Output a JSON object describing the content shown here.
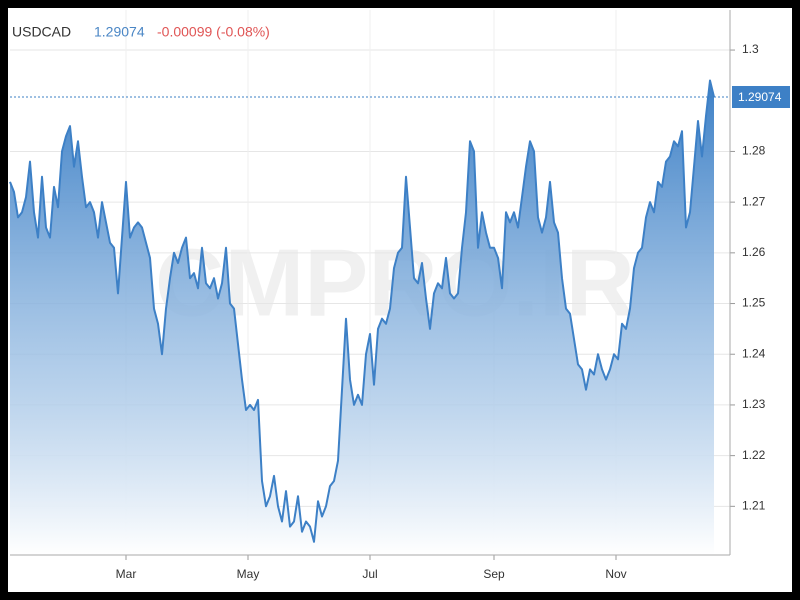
{
  "chart_data": {
    "type": "area",
    "symbol": "USDCAD",
    "price": 1.29074,
    "change": "-0.00099 (-0.08%)",
    "watermark": "CMPRO.IR",
    "color": "#3d80c6",
    "grid": true,
    "ylim": [
      1.2004,
      1.3079
    ],
    "yticks": [
      1.21,
      1.22,
      1.23,
      1.24,
      1.25,
      1.26,
      1.27,
      1.28,
      1.3
    ],
    "xlim": [
      2,
      362
    ],
    "xticks": [
      {
        "value": 60,
        "label": "Mar"
      },
      {
        "value": 121,
        "label": "May"
      },
      {
        "value": 182,
        "label": "Jul"
      },
      {
        "value": 244,
        "label": "Sep"
      },
      {
        "value": 305,
        "label": "Nov"
      }
    ],
    "x": [
      2,
      4,
      6,
      8,
      10,
      12,
      14,
      16,
      18,
      20,
      22,
      24,
      26,
      28,
      30,
      32,
      34,
      36,
      38,
      40,
      42,
      44,
      46,
      48,
      50,
      52,
      54,
      56,
      58,
      60,
      62,
      64,
      66,
      68,
      70,
      72,
      74,
      76,
      78,
      80,
      82,
      84,
      86,
      88,
      90,
      92,
      94,
      96,
      98,
      100,
      102,
      104,
      106,
      108,
      110,
      112,
      114,
      116,
      118,
      120,
      122,
      124,
      126,
      128,
      130,
      132,
      134,
      136,
      138,
      140,
      142,
      144,
      146,
      148,
      150,
      152,
      154,
      156,
      158,
      160,
      162,
      164,
      166,
      168,
      170,
      172,
      174,
      176,
      178,
      180,
      182,
      184,
      186,
      188,
      190,
      192,
      194,
      196,
      198,
      200,
      202,
      204,
      206,
      208,
      210,
      212,
      214,
      216,
      218,
      220,
      222,
      224,
      226,
      228,
      230,
      232,
      234,
      236,
      238,
      240,
      242,
      244,
      246,
      248,
      250,
      252,
      254,
      256,
      258,
      260,
      262,
      264,
      266,
      268,
      270,
      272,
      274,
      276,
      278,
      280,
      282,
      284,
      286,
      288,
      290,
      292,
      294,
      296,
      298,
      300,
      302,
      304,
      306,
      308,
      310,
      312,
      314,
      316,
      318,
      320,
      322,
      324,
      326,
      328,
      330,
      332,
      334,
      336,
      338,
      340,
      342,
      344,
      346,
      348,
      350,
      352,
      354
    ],
    "values": [
      1.274,
      1.272,
      1.267,
      1.268,
      1.271,
      1.278,
      1.268,
      1.263,
      1.275,
      1.265,
      1.263,
      1.273,
      1.269,
      1.28,
      1.283,
      1.285,
      1.277,
      1.282,
      1.275,
      1.269,
      1.27,
      1.268,
      1.263,
      1.27,
      1.266,
      1.262,
      1.261,
      1.252,
      1.263,
      1.274,
      1.263,
      1.265,
      1.266,
      1.265,
      1.262,
      1.259,
      1.249,
      1.246,
      1.24,
      1.249,
      1.255,
      1.26,
      1.258,
      1.261,
      1.263,
      1.255,
      1.256,
      1.253,
      1.261,
      1.254,
      1.253,
      1.255,
      1.251,
      1.254,
      1.261,
      1.25,
      1.249,
      1.242,
      1.235,
      1.229,
      1.23,
      1.229,
      1.231,
      1.215,
      1.21,
      1.212,
      1.216,
      1.21,
      1.207,
      1.213,
      1.206,
      1.207,
      1.212,
      1.205,
      1.207,
      1.206,
      1.203,
      1.211,
      1.208,
      1.21,
      1.214,
      1.215,
      1.219,
      1.233,
      1.247,
      1.235,
      1.23,
      1.232,
      1.23,
      1.24,
      1.244,
      1.234,
      1.245,
      1.247,
      1.246,
      1.249,
      1.257,
      1.26,
      1.261,
      1.275,
      1.265,
      1.255,
      1.254,
      1.258,
      1.251,
      1.245,
      1.252,
      1.254,
      1.253,
      1.259,
      1.252,
      1.251,
      1.252,
      1.261,
      1.268,
      1.282,
      1.28,
      1.261,
      1.268,
      1.264,
      1.261,
      1.261,
      1.259,
      1.253,
      1.268,
      1.266,
      1.268,
      1.265,
      1.271,
      1.277,
      1.282,
      1.28,
      1.267,
      1.264,
      1.267,
      1.274,
      1.266,
      1.264,
      1.255,
      1.249,
      1.248,
      1.243,
      1.238,
      1.237,
      1.233,
      1.237,
      1.236,
      1.24,
      1.237,
      1.235,
      1.237,
      1.24,
      1.239,
      1.246,
      1.245,
      1.249,
      1.257,
      1.26,
      1.261,
      1.267,
      1.27,
      1.268,
      1.274,
      1.273,
      1.278,
      1.279,
      1.282,
      1.281,
      1.284,
      1.265,
      1.268,
      1.277,
      1.286,
      1.279,
      1.287,
      1.294,
      1.29074
    ]
  }
}
